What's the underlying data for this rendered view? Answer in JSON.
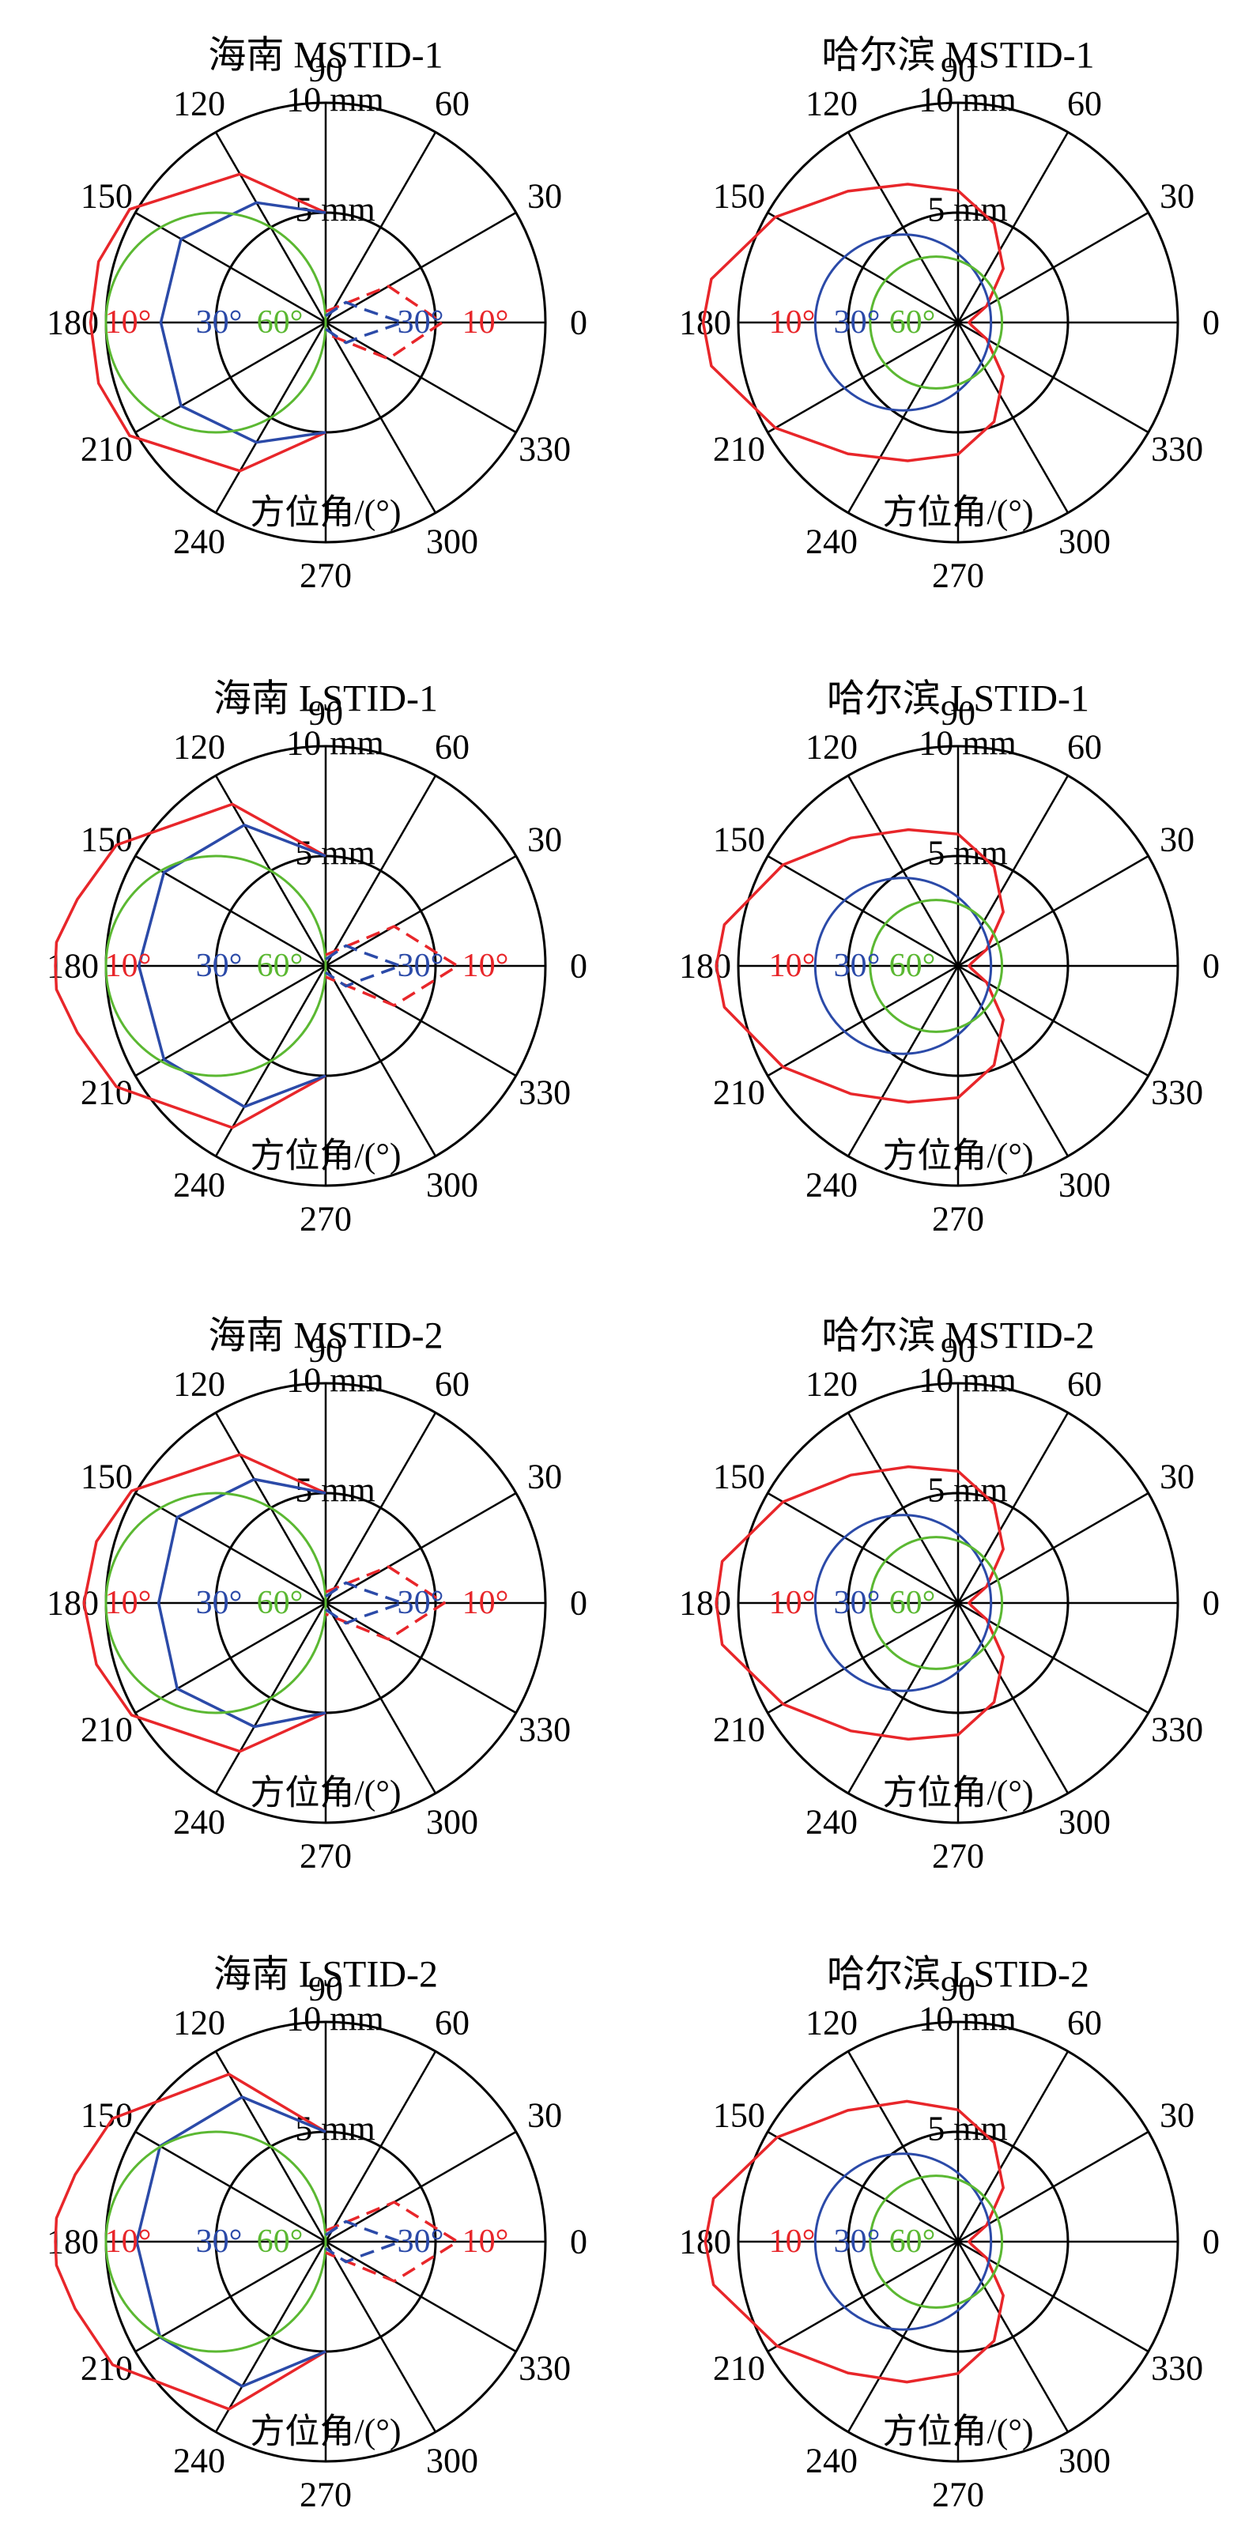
{
  "figure": {
    "panel_titles": [
      "海南 MSTID-1",
      "哈尔滨 MSTID-1",
      "海南 LSTID-1",
      "哈尔滨 LSTID-1",
      "海南 MSTID-2",
      "哈尔滨 MSTID-2",
      "海南 LSTID-2",
      "哈尔滨 LSTID-2"
    ],
    "angle_ticks": [
      "0",
      "30",
      "60",
      "90",
      "120",
      "150",
      "180",
      "210",
      "240",
      "270",
      "300",
      "330"
    ],
    "radial_tick_labels": [
      "5 mm",
      "10 mm"
    ],
    "axis_label": "方位角/(°)",
    "elevation_labels": [
      "10°",
      "30°",
      "60°"
    ]
  },
  "colors": {
    "axes": "#000000",
    "elev_10": "#e8262a",
    "elev_30": "#2b4aa8",
    "elev_60": "#5bb832"
  },
  "chart_data": [
    {
      "type": "polar-line",
      "title": "海南 MSTID-1",
      "theta_unit": "deg",
      "r_unit": "mm",
      "rlim": [
        0,
        10
      ],
      "rticks": [
        5,
        10
      ],
      "series": [
        {
          "name": "10°",
          "color_key": "elev_10",
          "style": "solid",
          "theta": [
            90,
            120,
            150,
            165,
            180,
            195,
            210,
            240,
            270
          ],
          "r": [
            5,
            7.8,
            10.3,
            10.7,
            10.7,
            10.7,
            10.3,
            7.8,
            5
          ]
        },
        {
          "name": "30°",
          "color_key": "elev_30",
          "style": "solid",
          "theta": [
            90,
            120,
            150,
            180,
            210,
            240,
            270
          ],
          "r": [
            5,
            6.3,
            7.6,
            7.5,
            7.6,
            6.3,
            5
          ]
        },
        {
          "name": "60°",
          "color_key": "elev_60",
          "style": "solid",
          "full_circle": true,
          "center_r": 5,
          "radius": 5
        },
        {
          "name": "10°",
          "color_key": "elev_10",
          "style": "dashed",
          "theta": [
            90,
            30,
            0,
            -30,
            -90
          ],
          "r": [
            0.5,
            3.3,
            5.3,
            3.3,
            0.5
          ]
        },
        {
          "name": "30°",
          "color_key": "elev_30",
          "style": "dashed",
          "theta": [
            90,
            45,
            20,
            0,
            -20,
            -45,
            -90
          ],
          "r": [
            0.3,
            1.3,
            1.8,
            3.5,
            1.8,
            1.3,
            0.3
          ]
        }
      ]
    },
    {
      "type": "polar-line",
      "title": "哈尔滨 MSTID-1",
      "theta_unit": "deg",
      "r_unit": "mm",
      "rlim": [
        0,
        10
      ],
      "rticks": [
        5,
        10
      ],
      "series": [
        {
          "name": "10°",
          "color_key": "elev_10",
          "style": "solid",
          "theta": [
            90,
            110,
            130,
            150,
            170,
            180,
            190,
            210,
            230,
            250,
            270,
            290,
            310,
            330,
            350,
            360,
            370,
            390,
            410,
            430,
            450
          ],
          "r": [
            6.0,
            6.7,
            7.8,
            9.6,
            11.4,
            11.6,
            11.4,
            9.6,
            7.8,
            6.7,
            6.0,
            4.8,
            3.2,
            1.5,
            0.6,
            0.5,
            0.6,
            1.5,
            3.2,
            4.8,
            6.0
          ]
        },
        {
          "name": "30°",
          "color_key": "elev_30",
          "style": "solid",
          "full_circle": true,
          "center_r": 2.5,
          "radius": 4.0
        },
        {
          "name": "60°",
          "color_key": "elev_60",
          "style": "solid",
          "full_circle": true,
          "center_r": 1.0,
          "radius": 3.0
        }
      ]
    },
    {
      "type": "polar-line",
      "title": "海南 LSTID-1",
      "theta_unit": "deg",
      "r_unit": "mm",
      "rlim": [
        0,
        10
      ],
      "rticks": [
        5,
        10
      ],
      "series": [
        {
          "name": "10°",
          "color_key": "elev_10",
          "style": "solid",
          "theta": [
            90,
            120,
            150,
            165,
            175,
            180,
            185,
            195,
            210,
            240,
            270
          ],
          "r": [
            5,
            8.5,
            11.0,
            11.7,
            12.3,
            12.3,
            12.3,
            11.7,
            11.0,
            8.5,
            5
          ]
        },
        {
          "name": "30°",
          "color_key": "elev_30",
          "style": "solid",
          "theta": [
            90,
            120,
            150,
            180,
            210,
            240,
            270
          ],
          "r": [
            5,
            7.4,
            8.5,
            8.5,
            8.5,
            7.4,
            5
          ]
        },
        {
          "name": "60°",
          "color_key": "elev_60",
          "style": "solid",
          "full_circle": true,
          "center_r": 5,
          "radius": 5
        },
        {
          "name": "10°",
          "color_key": "elev_10",
          "style": "dashed",
          "theta": [
            90,
            30,
            0,
            -30,
            -90
          ],
          "r": [
            0.5,
            3.6,
            6.0,
            3.6,
            0.5
          ]
        },
        {
          "name": "30°",
          "color_key": "elev_30",
          "style": "dashed",
          "theta": [
            90,
            45,
            20,
            0,
            -20,
            -45,
            -90
          ],
          "r": [
            0.3,
            1.3,
            1.8,
            3.4,
            1.8,
            1.3,
            0.3
          ]
        }
      ]
    },
    {
      "type": "polar-line",
      "title": "哈尔滨 LSTID-1",
      "theta_unit": "deg",
      "r_unit": "mm",
      "rlim": [
        0,
        10
      ],
      "rticks": [
        5,
        10
      ],
      "series": [
        {
          "name": "10°",
          "color_key": "elev_10",
          "style": "solid",
          "theta": [
            90,
            110,
            130,
            150,
            170,
            180,
            190,
            210,
            230,
            250,
            270,
            290,
            310,
            330,
            350,
            360,
            370,
            390,
            410,
            430,
            450
          ],
          "r": [
            6.0,
            6.6,
            7.6,
            9.2,
            10.8,
            11.0,
            10.8,
            9.2,
            7.6,
            6.6,
            6.0,
            4.8,
            3.2,
            1.5,
            0.6,
            0.5,
            0.6,
            1.5,
            3.2,
            4.8,
            6.0
          ]
        },
        {
          "name": "30°",
          "color_key": "elev_30",
          "style": "solid",
          "full_circle": true,
          "center_r": 2.5,
          "radius": 4.0
        },
        {
          "name": "60°",
          "color_key": "elev_60",
          "style": "solid",
          "full_circle": true,
          "center_r": 1.0,
          "radius": 3.0
        }
      ]
    },
    {
      "type": "polar-line",
      "title": "海南 MSTID-2",
      "theta_unit": "deg",
      "r_unit": "mm",
      "rlim": [
        0,
        10
      ],
      "rticks": [
        5,
        10
      ],
      "series": [
        {
          "name": "10°",
          "color_key": "elev_10",
          "style": "solid",
          "theta": [
            90,
            120,
            150,
            165,
            180,
            195,
            210,
            240,
            270
          ],
          "r": [
            5,
            7.8,
            10.2,
            10.8,
            11.0,
            10.8,
            10.2,
            7.8,
            5
          ]
        },
        {
          "name": "30°",
          "color_key": "elev_30",
          "style": "solid",
          "theta": [
            90,
            120,
            150,
            180,
            210,
            240,
            270
          ],
          "r": [
            5,
            6.5,
            7.8,
            7.6,
            7.8,
            6.5,
            5
          ]
        },
        {
          "name": "60°",
          "color_key": "elev_60",
          "style": "solid",
          "full_circle": true,
          "center_r": 5,
          "radius": 5
        },
        {
          "name": "10°",
          "color_key": "elev_10",
          "style": "dashed",
          "theta": [
            90,
            30,
            0,
            -30,
            -90
          ],
          "r": [
            0.5,
            3.3,
            5.4,
            3.3,
            0.5
          ]
        },
        {
          "name": "30°",
          "color_key": "elev_30",
          "style": "dashed",
          "theta": [
            90,
            45,
            20,
            0,
            -20,
            -45,
            -90
          ],
          "r": [
            0.3,
            1.3,
            1.8,
            3.5,
            1.8,
            1.3,
            0.3
          ]
        }
      ]
    },
    {
      "type": "polar-line",
      "title": "哈尔滨 MSTID-2",
      "theta_unit": "deg",
      "r_unit": "mm",
      "rlim": [
        0,
        10
      ],
      "rticks": [
        5,
        10
      ],
      "series": [
        {
          "name": "10°",
          "color_key": "elev_10",
          "style": "solid",
          "theta": [
            90,
            110,
            130,
            150,
            170,
            180,
            190,
            210,
            230,
            250,
            270,
            290,
            310,
            330,
            350,
            360,
            370,
            390,
            410,
            430,
            450
          ],
          "r": [
            6.0,
            6.6,
            7.6,
            9.2,
            10.9,
            11.0,
            10.9,
            9.2,
            7.6,
            6.6,
            6.0,
            4.8,
            3.2,
            1.5,
            0.6,
            0.5,
            0.6,
            1.5,
            3.2,
            4.8,
            6.0
          ]
        },
        {
          "name": "30°",
          "color_key": "elev_30",
          "style": "solid",
          "full_circle": true,
          "center_r": 2.5,
          "radius": 4.0
        },
        {
          "name": "60°",
          "color_key": "elev_60",
          "style": "solid",
          "full_circle": true,
          "center_r": 1.0,
          "radius": 3.0
        }
      ]
    },
    {
      "type": "polar-line",
      "title": "海南 LSTID-2",
      "theta_unit": "deg",
      "r_unit": "mm",
      "rlim": [
        0,
        10
      ],
      "rticks": [
        5,
        10
      ],
      "series": [
        {
          "name": "10°",
          "color_key": "elev_10",
          "style": "solid",
          "theta": [
            90,
            120,
            150,
            165,
            175,
            180,
            185,
            195,
            210,
            240,
            270
          ],
          "r": [
            5,
            8.8,
            11.2,
            11.8,
            12.3,
            12.3,
            12.3,
            11.8,
            11.2,
            8.8,
            5
          ]
        },
        {
          "name": "30°",
          "color_key": "elev_30",
          "style": "solid",
          "theta": [
            90,
            120,
            150,
            180,
            210,
            240,
            270
          ],
          "r": [
            5,
            7.6,
            8.7,
            8.6,
            8.7,
            7.6,
            5
          ]
        },
        {
          "name": "60°",
          "color_key": "elev_60",
          "style": "solid",
          "full_circle": true,
          "center_r": 5,
          "radius": 5
        },
        {
          "name": "10°",
          "color_key": "elev_10",
          "style": "dashed",
          "theta": [
            90,
            30,
            0,
            -30,
            -90
          ],
          "r": [
            0.5,
            3.6,
            6.0,
            3.6,
            0.5
          ]
        },
        {
          "name": "30°",
          "color_key": "elev_30",
          "style": "dashed",
          "theta": [
            90,
            45,
            20,
            0,
            -20,
            -45,
            -90
          ],
          "r": [
            0.3,
            1.3,
            1.8,
            3.4,
            1.8,
            1.3,
            0.3
          ]
        }
      ]
    },
    {
      "type": "polar-line",
      "title": "哈尔滨 LSTID-2",
      "theta_unit": "deg",
      "r_unit": "mm",
      "rlim": [
        0,
        10
      ],
      "rticks": [
        5,
        10
      ],
      "series": [
        {
          "name": "10°",
          "color_key": "elev_10",
          "style": "solid",
          "theta": [
            90,
            110,
            130,
            150,
            170,
            180,
            190,
            210,
            230,
            250,
            270,
            290,
            310,
            330,
            350,
            360,
            370,
            390,
            410,
            430,
            450
          ],
          "r": [
            6.0,
            6.8,
            7.8,
            9.5,
            11.3,
            11.5,
            11.3,
            9.5,
            7.8,
            6.8,
            6.0,
            4.8,
            3.2,
            1.5,
            0.6,
            0.5,
            0.6,
            1.5,
            3.2,
            4.8,
            6.0
          ]
        },
        {
          "name": "30°",
          "color_key": "elev_30",
          "style": "solid",
          "full_circle": true,
          "center_r": 2.5,
          "radius": 4.0
        },
        {
          "name": "60°",
          "color_key": "elev_60",
          "style": "solid",
          "full_circle": true,
          "center_r": 1.0,
          "radius": 3.0
        }
      ]
    }
  ]
}
